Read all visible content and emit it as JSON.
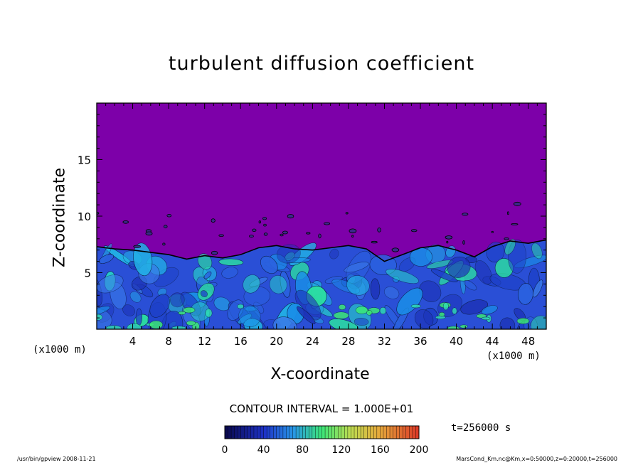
{
  "chart_data": {
    "type": "heatmap",
    "title": "turbulent diffusion coefficient",
    "xlabel": "X-coordinate",
    "ylabel": "Z-coordinate",
    "x_unit_left": "(x1000 m)",
    "x_unit_right": "(x1000 m)",
    "xlim": [
      0,
      50
    ],
    "ylim": [
      0,
      20
    ],
    "x_ticks": [
      4,
      8,
      12,
      16,
      20,
      24,
      28,
      32,
      36,
      40,
      44,
      48
    ],
    "y_ticks": [
      5,
      10,
      15
    ],
    "contour_interval": "CONTOUR INTERVAL = 1.000E+01",
    "time_label": "t=256000 s",
    "colorbar": {
      "min": 0,
      "max": 200,
      "ticks": [
        0,
        40,
        80,
        120,
        160,
        200
      ]
    },
    "background_color": "#7d00a9",
    "boundary_layer_top": [
      [
        0,
        7.3
      ],
      [
        2,
        7.1
      ],
      [
        4,
        7.0
      ],
      [
        6,
        6.8
      ],
      [
        8,
        6.6
      ],
      [
        10,
        6.2
      ],
      [
        12,
        6.5
      ],
      [
        14,
        6.3
      ],
      [
        16,
        6.6
      ],
      [
        18,
        7.2
      ],
      [
        20,
        7.4
      ],
      [
        22,
        7.1
      ],
      [
        24,
        7.0
      ],
      [
        26,
        7.2
      ],
      [
        28,
        7.4
      ],
      [
        30,
        7.1
      ],
      [
        32,
        6.0
      ],
      [
        34,
        6.6
      ],
      [
        36,
        7.2
      ],
      [
        38,
        7.4
      ],
      [
        40,
        7.0
      ],
      [
        42,
        6.4
      ],
      [
        44,
        7.3
      ],
      [
        46,
        7.8
      ],
      [
        48,
        7.6
      ],
      [
        50,
        7.9
      ]
    ]
  },
  "footer": {
    "left": "/usr/bin/gpview   2008-11-21",
    "right": "MarsCond_Km.nc@Km,x=0:50000,z=0:20000,t=256000"
  }
}
